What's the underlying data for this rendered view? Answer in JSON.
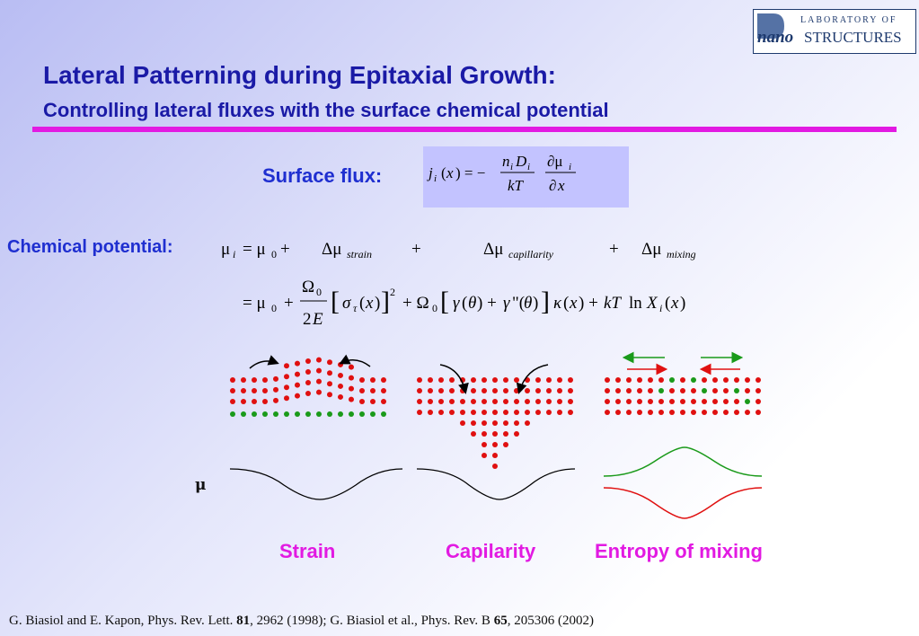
{
  "logo": {
    "line1": "LABORATORY OF",
    "nano": "nano",
    "structures": "STRUCTURES"
  },
  "title": "Lateral Patterning during Epitaxial Growth:",
  "subtitle": "Controlling lateral fluxes with the surface chemical potential",
  "surface_flux_label": "Surface flux:",
  "chemical_potential_label": "Chemical potential:",
  "colors": {
    "title": "#1a1aa6",
    "rule": "#e21ae2",
    "label": "#1f2fd0",
    "caption": "#e21ae2",
    "flux_box": "#c3c3ff",
    "dot_red": "#e01010",
    "dot_green": "#1a9a1a"
  },
  "mu_label": "μ",
  "captions": {
    "strain": "Strain",
    "capillarity": "Capilarity",
    "mixing": "Entropy of mixing"
  },
  "reference": {
    "part1": "G. Biasiol and E. Kapon, Phys. Rev. Lett. ",
    "vol1": "81",
    "part2": ", 2962 (1998); G. Biasiol et al., Phys. Rev. B ",
    "vol2": "65",
    "part3": ", 205306 (2002)"
  }
}
